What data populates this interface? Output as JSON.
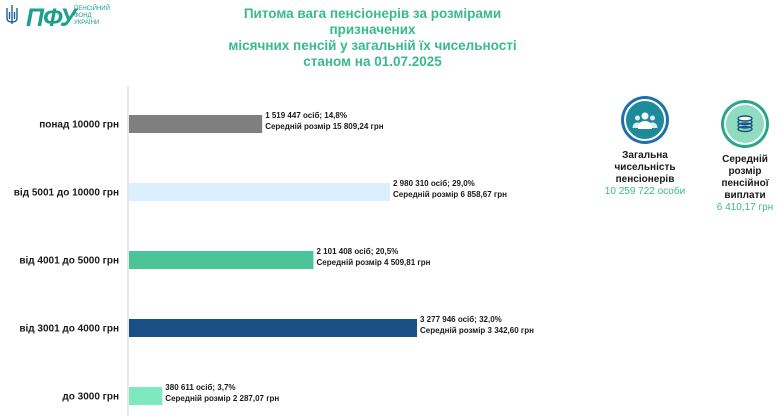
{
  "logo": {
    "mark": "ПФУ",
    "subtitle": "ПЕНСІЙНИЙ ФОНД УКРАЇНИ",
    "icon": "trident-icon"
  },
  "header": {
    "title_line1": "Питома вага пенсіонерів за розмірами призначених",
    "title_line2": "місячних пенсій у загальній їх чисельності",
    "title_line3": "станом на 01.07.2025"
  },
  "kpis": [
    {
      "icon": "people-icon",
      "label_line1": "Загальна",
      "label_line2": "чисельність",
      "label_line3": "пенсіонерів",
      "value": "10 259 722 особи"
    },
    {
      "icon": "coins-icon",
      "label_line1": "Середній",
      "label_line2": "розмір",
      "label_line3": "пенсійної виплати",
      "value": "6 410,17 грн"
    }
  ],
  "chart_data": {
    "type": "bar",
    "orientation": "horizontal",
    "categories": [
      "понад 10000 грн",
      "від 5001 до 10000 грн",
      "від 4001 до 5000 грн",
      "від 3001 до 4000 грн",
      "до 3000 грн"
    ],
    "values": [
      14.8,
      29.0,
      20.5,
      32.0,
      3.7
    ],
    "counts": [
      "1 519 447 осіб",
      "2 980 310 осіб",
      "2 101 408 осіб",
      "3 277 946 осіб",
      "380 611 осіб"
    ],
    "labels_line1": [
      "1 519 447 осіб;  14,8%",
      "2 980 310 осіб; 29,0%",
      "2 101 408 осіб; 20,5%",
      "3 277 946 осіб; 32,0%",
      "380 611 осіб; 3,7%"
    ],
    "labels_line2": [
      "Середній розмір 15 809,24 грн",
      "Середній розмір 6 858,67 грн",
      "Середній розмір 4 509,81 грн",
      "Середній розмір 3 342,60 грн",
      "Середній розмір 2 287,07 грн"
    ],
    "colors": [
      "#7f7f7f",
      "#dcefff",
      "#4cc49a",
      "#1a4f85",
      "#7ee8bf"
    ],
    "xlim": [
      0,
      32.0
    ],
    "grid": false,
    "legend": "none"
  }
}
